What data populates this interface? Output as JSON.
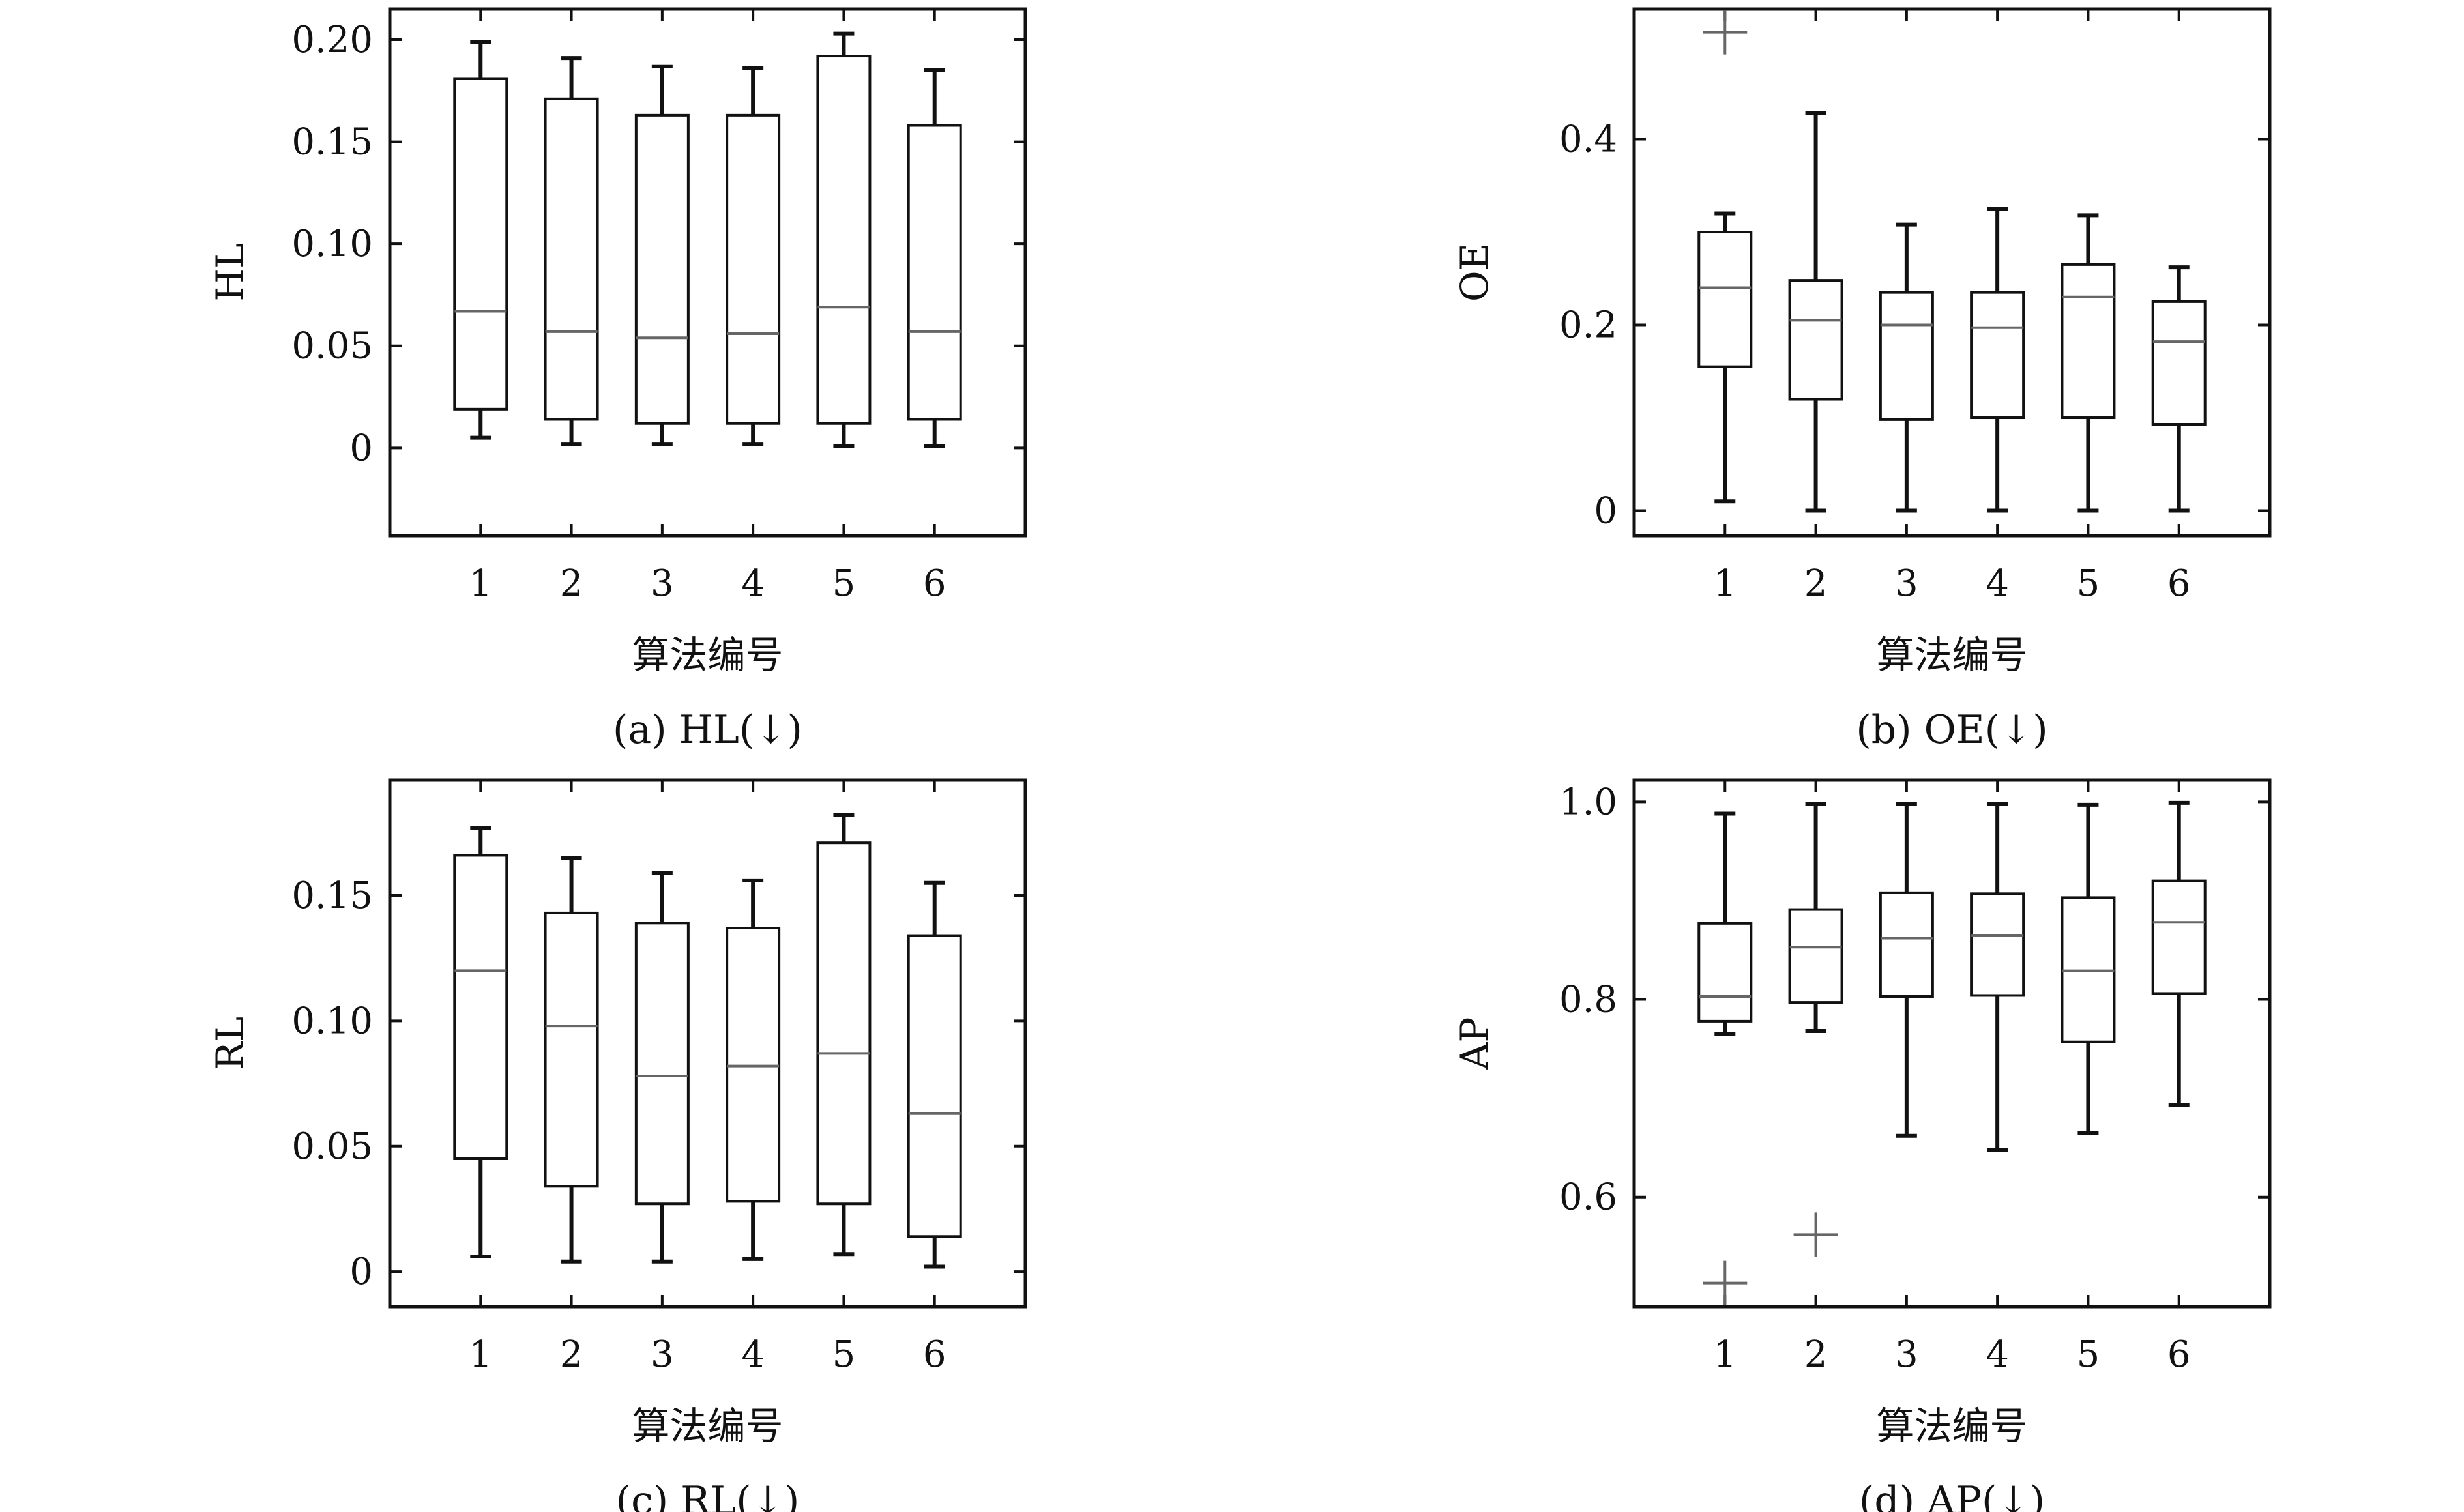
{
  "chart_data": [
    {
      "type": "box",
      "ylabel": "HL",
      "xlabel": "算法编号",
      "caption": "(a) HL(↓)",
      "categories": [
        "1",
        "2",
        "3",
        "4",
        "5",
        "6"
      ],
      "ylim": [
        -0.043,
        0.215
      ],
      "yticks": [
        0,
        0.05,
        0.1,
        0.15,
        0.2
      ],
      "ytick_labels": [
        "0",
        "0.05",
        "0.10",
        "0.15",
        "0.20"
      ],
      "boxes": [
        {
          "q1": 0.019,
          "median": 0.067,
          "q3": 0.181,
          "whisker_low": 0.005,
          "whisker_high": 0.199,
          "outliers": []
        },
        {
          "q1": 0.014,
          "median": 0.057,
          "q3": 0.171,
          "whisker_low": 0.002,
          "whisker_high": 0.191,
          "outliers": []
        },
        {
          "q1": 0.012,
          "median": 0.054,
          "q3": 0.163,
          "whisker_low": 0.002,
          "whisker_high": 0.187,
          "outliers": []
        },
        {
          "q1": 0.012,
          "median": 0.056,
          "q3": 0.163,
          "whisker_low": 0.002,
          "whisker_high": 0.186,
          "outliers": []
        },
        {
          "q1": 0.012,
          "median": 0.069,
          "q3": 0.192,
          "whisker_low": 0.001,
          "whisker_high": 0.203,
          "outliers": []
        },
        {
          "q1": 0.014,
          "median": 0.057,
          "q3": 0.158,
          "whisker_low": 0.001,
          "whisker_high": 0.185,
          "outliers": []
        }
      ]
    },
    {
      "type": "box",
      "ylabel": "OE",
      "xlabel": "算法编号",
      "caption": "(b) OE(↓)",
      "categories": [
        "1",
        "2",
        "3",
        "4",
        "5",
        "6"
      ],
      "ylim": [
        -0.027,
        0.54
      ],
      "yticks": [
        0,
        0.2,
        0.4
      ],
      "ytick_labels": [
        "0",
        "0.2",
        "0.4"
      ],
      "boxes": [
        {
          "q1": 0.155,
          "median": 0.24,
          "q3": 0.3,
          "whisker_low": 0.01,
          "whisker_high": 0.32,
          "outliers": [
            0.515
          ]
        },
        {
          "q1": 0.12,
          "median": 0.205,
          "q3": 0.248,
          "whisker_low": 0.0,
          "whisker_high": 0.428,
          "outliers": []
        },
        {
          "q1": 0.098,
          "median": 0.2,
          "q3": 0.235,
          "whisker_low": 0.0,
          "whisker_high": 0.308,
          "outliers": []
        },
        {
          "q1": 0.1,
          "median": 0.197,
          "q3": 0.235,
          "whisker_low": 0.0,
          "whisker_high": 0.325,
          "outliers": []
        },
        {
          "q1": 0.1,
          "median": 0.23,
          "q3": 0.265,
          "whisker_low": 0.0,
          "whisker_high": 0.318,
          "outliers": []
        },
        {
          "q1": 0.093,
          "median": 0.182,
          "q3": 0.225,
          "whisker_low": 0.0,
          "whisker_high": 0.262,
          "outliers": []
        }
      ]
    },
    {
      "type": "box",
      "ylabel": "RL",
      "xlabel": "算法编号",
      "caption": "(c) RL(↓)",
      "categories": [
        "1",
        "2",
        "3",
        "4",
        "5",
        "6"
      ],
      "ylim": [
        -0.014,
        0.196
      ],
      "yticks": [
        0,
        0.05,
        0.1,
        0.15
      ],
      "ytick_labels": [
        "0",
        "0.05",
        "0.10",
        "0.15"
      ],
      "boxes": [
        {
          "q1": 0.045,
          "median": 0.12,
          "q3": 0.166,
          "whisker_low": 0.006,
          "whisker_high": 0.177,
          "outliers": []
        },
        {
          "q1": 0.034,
          "median": 0.098,
          "q3": 0.143,
          "whisker_low": 0.004,
          "whisker_high": 0.165,
          "outliers": []
        },
        {
          "q1": 0.027,
          "median": 0.078,
          "q3": 0.139,
          "whisker_low": 0.004,
          "whisker_high": 0.159,
          "outliers": []
        },
        {
          "q1": 0.028,
          "median": 0.082,
          "q3": 0.137,
          "whisker_low": 0.005,
          "whisker_high": 0.156,
          "outliers": []
        },
        {
          "q1": 0.027,
          "median": 0.087,
          "q3": 0.171,
          "whisker_low": 0.007,
          "whisker_high": 0.182,
          "outliers": []
        },
        {
          "q1": 0.014,
          "median": 0.063,
          "q3": 0.134,
          "whisker_low": 0.002,
          "whisker_high": 0.155,
          "outliers": []
        }
      ]
    },
    {
      "type": "box",
      "ylabel": "AP",
      "xlabel": "算法编号",
      "caption": "(d) AP(↓)",
      "categories": [
        "1",
        "2",
        "3",
        "4",
        "5",
        "6"
      ],
      "ylim": [
        0.489,
        1.022
      ],
      "yticks": [
        0.6,
        0.8,
        1.0
      ],
      "ytick_labels": [
        "0.6",
        "0.8",
        "1.0"
      ],
      "boxes": [
        {
          "q1": 0.778,
          "median": 0.803,
          "q3": 0.877,
          "whisker_low": 0.765,
          "whisker_high": 0.988,
          "outliers": [
            0.513
          ]
        },
        {
          "q1": 0.797,
          "median": 0.853,
          "q3": 0.891,
          "whisker_low": 0.768,
          "whisker_high": 0.998,
          "outliers": [
            0.562
          ]
        },
        {
          "q1": 0.803,
          "median": 0.862,
          "q3": 0.908,
          "whisker_low": 0.662,
          "whisker_high": 0.998,
          "outliers": []
        },
        {
          "q1": 0.804,
          "median": 0.865,
          "q3": 0.907,
          "whisker_low": 0.648,
          "whisker_high": 0.998,
          "outliers": []
        },
        {
          "q1": 0.757,
          "median": 0.829,
          "q3": 0.903,
          "whisker_low": 0.665,
          "whisker_high": 0.997,
          "outliers": []
        },
        {
          "q1": 0.806,
          "median": 0.878,
          "q3": 0.92,
          "whisker_low": 0.693,
          "whisker_high": 0.999,
          "outliers": []
        }
      ]
    }
  ]
}
